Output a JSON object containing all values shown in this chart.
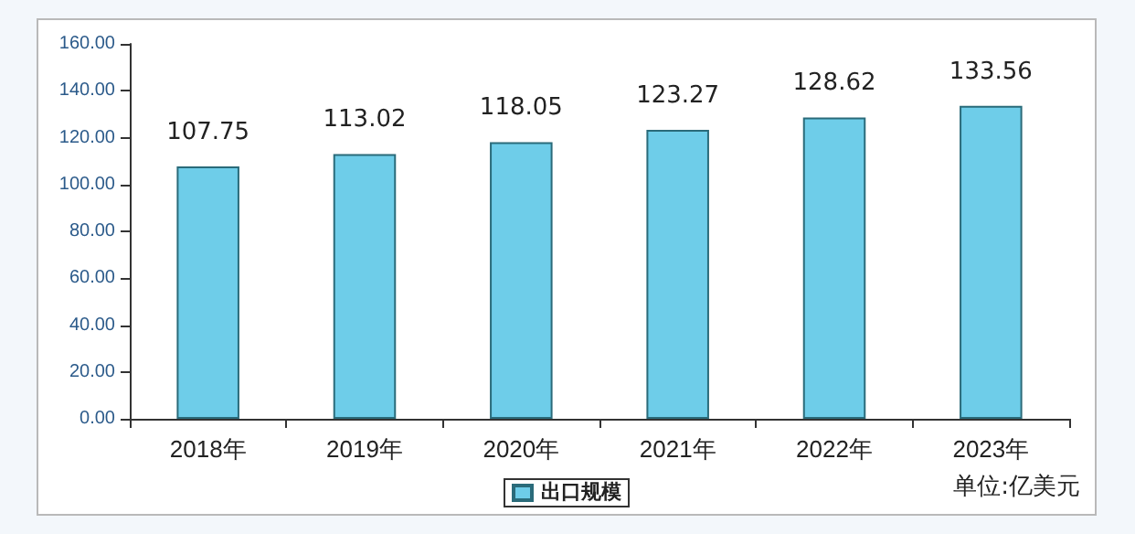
{
  "chart_data": {
    "type": "bar",
    "categories": [
      "2018年",
      "2019年",
      "2020年",
      "2021年",
      "2022年",
      "2023年"
    ],
    "series": [
      {
        "name": "出口规模",
        "color": "#6ecde9",
        "values": [
          107.75,
          113.02,
          118.05,
          123.27,
          128.62,
          133.56
        ]
      }
    ],
    "ylim": [
      0,
      160
    ],
    "yticks": [
      {
        "value": 0,
        "label": "0.00"
      },
      {
        "value": 20,
        "label": "20.00"
      },
      {
        "value": 40,
        "label": "40.00"
      },
      {
        "value": 60,
        "label": "60.00"
      },
      {
        "value": 80,
        "label": "80.00"
      },
      {
        "value": 100,
        "label": "100.00"
      },
      {
        "value": 120,
        "label": "120.00"
      },
      {
        "value": 140,
        "label": "140.00"
      },
      {
        "value": 160,
        "label": "160.00"
      }
    ],
    "data_labels": true,
    "grid": false,
    "legend": "bottom",
    "annotations": [
      "单位:亿美元"
    ]
  }
}
